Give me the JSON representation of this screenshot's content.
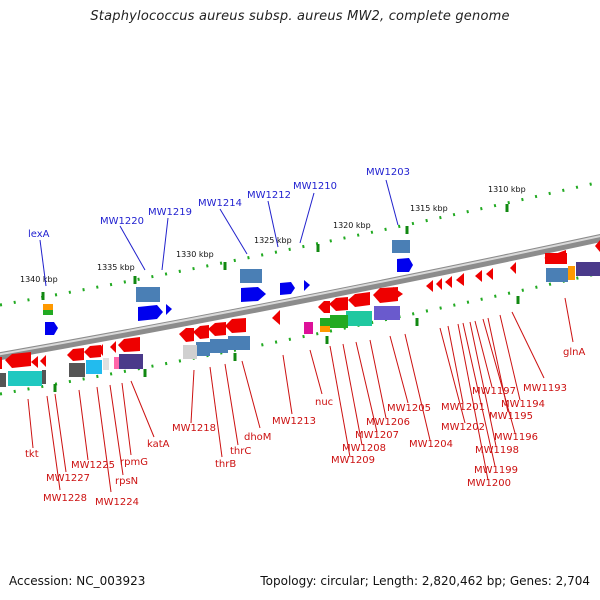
{
  "title": "Staphylococcus aureus subsp. aureus MW2, complete genome",
  "footer": {
    "accession": "Accession: NC_003923",
    "summary": "Topology: circular; Length: 2,820,462 bp; Genes: 2,704"
  },
  "scale_labels": [
    "1310 kbp",
    "1315 kbp",
    "1320 kbp",
    "1325 kbp",
    "1330 kbp",
    "1335 kbp",
    "1340 kbp"
  ],
  "top_labels": [
    "MW1203",
    "MW1210",
    "MW1212",
    "MW1214",
    "MW1219",
    "MW1220",
    "lexA"
  ],
  "bottom_labels": [
    "glnA",
    "MW1193",
    "MW1194",
    "MW1195",
    "MW1196",
    "MW1197",
    "MW1198",
    "MW1199",
    "MW1200",
    "MW1201",
    "MW1202",
    "MW1204",
    "MW1205",
    "MW1206",
    "MW1207",
    "MW1208",
    "MW1209",
    "nuc",
    "MW1213",
    "dhoM",
    "thrC",
    "thrB",
    "MW1218",
    "katA",
    "rpmG",
    "rpsN",
    "MW1224",
    "MW1225",
    "MW1227",
    "MW1228",
    "tkt"
  ],
  "colors": {
    "forward_gene": "#0000ee",
    "reverse_gene": "#ee0000",
    "backbone": "#9a9a9a",
    "tick": "#22aa22",
    "top_label": "#1f1fd0",
    "bottom_label": "#cc1111"
  }
}
